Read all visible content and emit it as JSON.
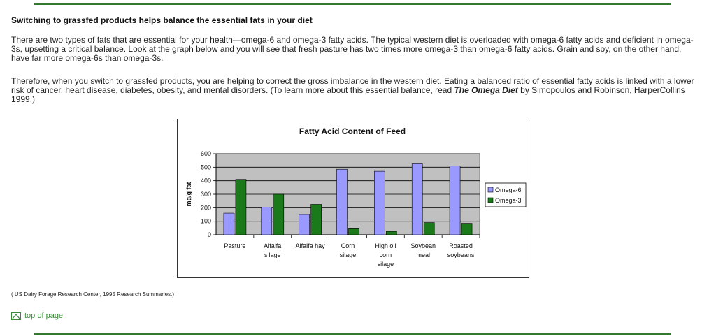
{
  "article": {
    "heading": "Switching to grassfed products helps balance the essential fats in your diet",
    "p1": "There are two types of fats that are essential for your health—omega-6 and omega-3 fatty acids. The typical western diet is overloaded with omega-6 fatty acids and deficient in omega-3s, upsetting a critical balance. Look at the graph below and you will see that fresh pasture has two times more omega-3 than omega-6 fatty acids. Grain and soy, on the other hand, have far more omega-6s than omega-3s.",
    "p2_before": "Therefore, when you switch to grassfed products, you are helping to correct the gross imbalance in the western diet. Eating a balanced ratio of essential fatty acids is linked with a lower risk of cancer, heart disease, diabetes, obesity, and mental disorders. (To learn more about this essential balance, read ",
    "p2_book": "The Omega Diet",
    "p2_after": " by Simopoulos and Robinson, HarperCollins 1999.)",
    "source": "( US Dairy Forage Research Center, 1995 Research Summaries.)",
    "top_link": "top of page",
    "top_icon": "arrow-up-icon"
  },
  "chart_data": {
    "type": "bar",
    "title": "Fatty Acid Content of Feed",
    "ylabel": "mg/g fat",
    "xlabel": "",
    "ylim": [
      0,
      600
    ],
    "yticks": [
      0,
      100,
      200,
      300,
      400,
      500,
      600
    ],
    "grid": true,
    "legend_position": "right",
    "categories": [
      [
        "Pasture"
      ],
      [
        "Alfalfa",
        "silage"
      ],
      [
        "Alfalfa hay"
      ],
      [
        "Corn",
        "silage"
      ],
      [
        "High oil",
        "corn",
        "silage"
      ],
      [
        "Soybean",
        "meal"
      ],
      [
        "Roasted",
        "soybeans"
      ]
    ],
    "series": [
      {
        "name": "Omega-6",
        "color": "#9999ff",
        "values": [
          160,
          205,
          150,
          485,
          470,
          525,
          510
        ]
      },
      {
        "name": "Omega-3",
        "color": "#1a7a1a",
        "values": [
          410,
          300,
          225,
          45,
          25,
          90,
          85
        ]
      }
    ],
    "plot_bg": "#c0c0c0"
  }
}
